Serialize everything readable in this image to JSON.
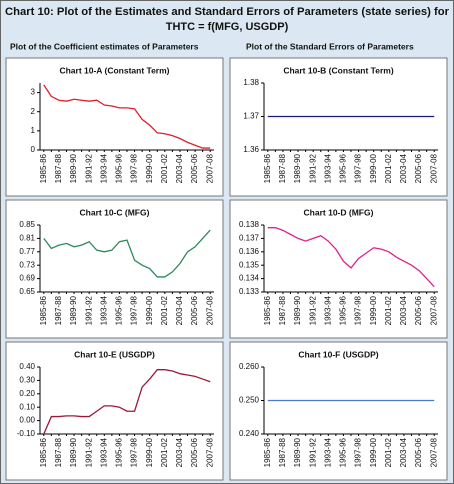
{
  "header": {
    "title": [
      "Chart 10: Plot of the Estimates and Standard Errors of Parameters (state series) for",
      "THTC = f(MFG, USGDP)"
    ],
    "columns": [
      "Plot of the Coefficient estimates of Parameters",
      "Plot of the Standard Errors of Parameters"
    ]
  },
  "chart_data": [
    {
      "type": "line",
      "title": "Chart 10-A (Constant Term)",
      "categories": [
        "1985-86",
        null,
        "1987-88",
        null,
        "1989-90",
        null,
        "1991-92",
        null,
        "1993-94",
        null,
        "1995-96",
        null,
        "1997-98",
        null,
        "1999-00",
        null,
        "2001-02",
        null,
        "2003-04",
        null,
        "2005-06",
        null,
        "2007-08"
      ],
      "values": [
        3.4,
        2.8,
        2.6,
        2.55,
        2.65,
        2.6,
        2.55,
        2.6,
        2.35,
        2.3,
        2.2,
        2.2,
        2.15,
        1.6,
        1.3,
        0.9,
        0.85,
        0.75,
        0.6,
        0.4,
        0.25,
        0.1,
        0.1
      ],
      "color": "#e0202a",
      "ylim": [
        0,
        3.5
      ],
      "yticks": [
        0,
        1,
        2,
        3
      ]
    },
    {
      "type": "line",
      "title": "Chart 10-B (Constant Term)",
      "categories": [
        "1985-86",
        null,
        "1987-88",
        null,
        "1989-90",
        null,
        "1991-92",
        null,
        "1993-94",
        null,
        "1995-96",
        null,
        "1997-98",
        null,
        "1999-00",
        null,
        "2001-02",
        null,
        "2003-04",
        null,
        "2005-06",
        null,
        "2007-08"
      ],
      "values": [
        1.37,
        1.37,
        1.37,
        1.37,
        1.37,
        1.37,
        1.37,
        1.37,
        1.37,
        1.37,
        1.37,
        1.37,
        1.37,
        1.37,
        1.37,
        1.37,
        1.37,
        1.37,
        1.37,
        1.37,
        1.37,
        1.37,
        1.37
      ],
      "color": "#1a1a80",
      "ylim": [
        1.36,
        1.38
      ],
      "yticks": [
        1.36,
        1.37,
        1.38
      ]
    },
    {
      "type": "line",
      "title": "Chart 10-C (MFG)",
      "categories": [
        "1985-86",
        null,
        "1987-88",
        null,
        "1989-90",
        null,
        "1991-92",
        null,
        "1993-94",
        null,
        "1995-96",
        null,
        "1997-98",
        null,
        "1999-00",
        null,
        "2001-02",
        null,
        "2003-04",
        null,
        "2005-06",
        null,
        "2007-08"
      ],
      "values": [
        0.81,
        0.78,
        0.79,
        0.795,
        0.785,
        0.79,
        0.8,
        0.775,
        0.77,
        0.775,
        0.8,
        0.805,
        0.745,
        0.73,
        0.72,
        0.695,
        0.695,
        0.71,
        0.735,
        0.77,
        0.785,
        0.81,
        0.835
      ],
      "color": "#2a8a5a",
      "ylim": [
        0.65,
        0.85
      ],
      "yticks": [
        0.65,
        0.69,
        0.73,
        0.77,
        0.81,
        0.85
      ]
    },
    {
      "type": "line",
      "title": "Chart 10-D (MFG)",
      "categories": [
        "1985-86",
        null,
        "1987-88",
        null,
        "1989-90",
        null,
        "1991-92",
        null,
        "1993-94",
        null,
        "1995-96",
        null,
        "1997-98",
        null,
        "1999-00",
        null,
        "2001-02",
        null,
        "2003-04",
        null,
        "2005-06",
        null,
        "2007-08"
      ],
      "values": [
        0.1378,
        0.1378,
        0.1376,
        0.1373,
        0.137,
        0.1368,
        0.137,
        0.1372,
        0.1368,
        0.1362,
        0.1353,
        0.1348,
        0.1355,
        0.1359,
        0.1363,
        0.1362,
        0.136,
        0.1356,
        0.1353,
        0.135,
        0.1346,
        0.134,
        0.1334
      ],
      "color": "#e0208a",
      "ylim": [
        0.133,
        0.138
      ],
      "yticks": [
        0.133,
        0.134,
        0.135,
        0.136,
        0.137,
        0.138
      ]
    },
    {
      "type": "line",
      "title": "Chart 10-E (USGDP)",
      "categories": [
        "1985-86",
        null,
        "1987-88",
        null,
        "1989-90",
        null,
        "1991-92",
        null,
        "1993-94",
        null,
        "1995-96",
        null,
        "1997-98",
        null,
        "1999-00",
        null,
        "2001-02",
        null,
        "2003-04",
        null,
        "2005-06",
        null,
        "2007-08"
      ],
      "values": [
        -0.1,
        0.03,
        0.03,
        0.035,
        0.035,
        0.03,
        0.03,
        0.07,
        0.11,
        0.11,
        0.1,
        0.07,
        0.07,
        0.25,
        0.31,
        0.38,
        0.38,
        0.37,
        0.35,
        0.34,
        0.33,
        0.31,
        0.29
      ],
      "color": "#9a1a3a",
      "ylim": [
        -0.1,
        0.4
      ],
      "yticks": [
        {
          "value": -0.1,
          "label": "-0.10"
        },
        {
          "value": 0,
          "label": "0.00"
        },
        {
          "value": 0.1,
          "label": "0.10"
        },
        {
          "value": 0.2,
          "label": "0.20"
        },
        {
          "value": 0.3,
          "label": "0.30"
        },
        {
          "value": 0.4,
          "label": "0.40"
        }
      ]
    },
    {
      "type": "line",
      "title": "Chart 10-F (USGDP)",
      "categories": [
        "1985-86",
        null,
        "1987-88",
        null,
        "1989-90",
        null,
        "1991-92",
        null,
        "1993-94",
        null,
        "1995-96",
        null,
        "1997-98",
        null,
        "1999-00",
        null,
        "2001-02",
        null,
        "2003-04",
        null,
        "2005-06",
        null,
        "2007-08"
      ],
      "values": [
        0.25,
        0.25,
        0.25,
        0.25,
        0.25,
        0.25,
        0.25,
        0.25,
        0.25,
        0.25,
        0.25,
        0.25,
        0.25,
        0.25,
        0.25,
        0.25,
        0.25,
        0.25,
        0.25,
        0.25,
        0.25,
        0.25,
        0.25
      ],
      "color": "#4a7ac8",
      "ylim": [
        0.24,
        0.26
      ],
      "yticks": [
        {
          "value": 0.24,
          "label": "0.240"
        },
        {
          "value": 0.25,
          "label": "0.250"
        },
        {
          "value": 0.26,
          "label": "0.260"
        }
      ]
    }
  ]
}
